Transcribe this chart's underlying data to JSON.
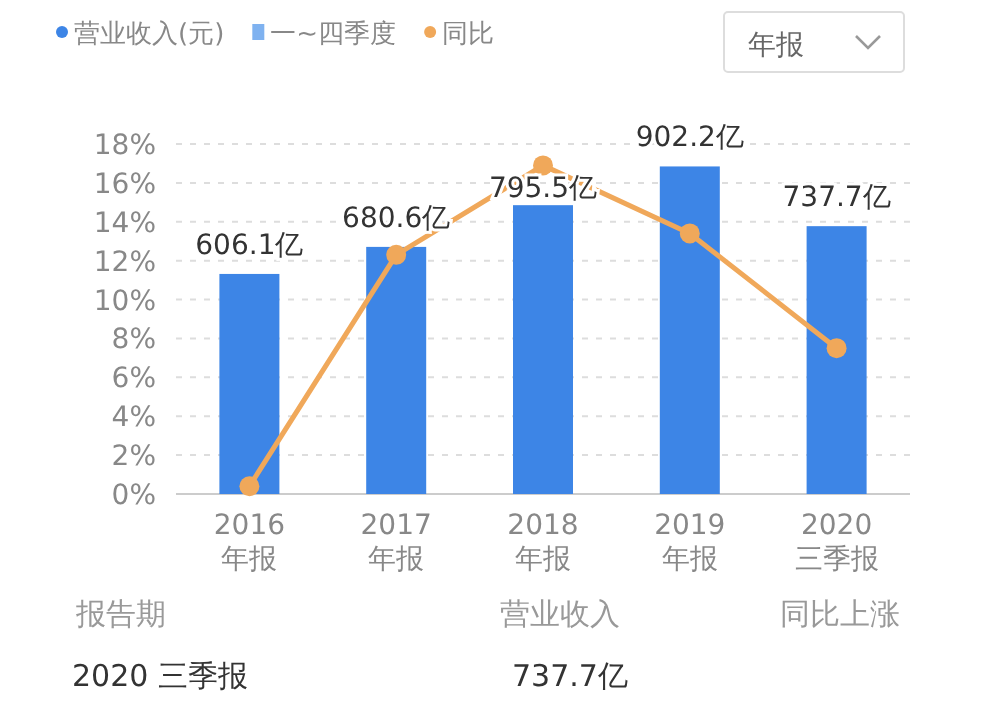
{
  "chart_data": {
    "type": "bar",
    "categories": [
      "2016\n年报",
      "2017\n年报",
      "2018\n年报",
      "2019\n年报",
      "2020\n三季报"
    ],
    "series": [
      {
        "name": "营业收入(元)",
        "color": "#3d85e6",
        "axis": "y2",
        "values": [
          606.1,
          680.6,
          795.5,
          902.2,
          737.7
        ],
        "value_labels": [
          "606.1亿",
          "680.6亿",
          "795.5亿",
          "902.2亿",
          "737.7亿"
        ]
      },
      {
        "name": "同比",
        "type": "line",
        "color": "#f0a85a",
        "marker": "circle",
        "values": [
          0.4,
          12.3,
          16.9,
          13.4,
          7.5
        ]
      }
    ],
    "ylim": [
      0,
      18
    ],
    "yticks": [
      {
        "value": 0,
        "label": "0%"
      },
      {
        "value": 2,
        "label": "2%"
      },
      {
        "value": 4,
        "label": "4%"
      },
      {
        "value": 6,
        "label": "6%"
      },
      {
        "value": 8,
        "label": "8%"
      },
      {
        "value": 10,
        "label": "10%"
      },
      {
        "value": 12,
        "label": "12%"
      },
      {
        "value": 14,
        "label": "14%"
      },
      {
        "value": 16,
        "label": "16%"
      },
      {
        "value": 18,
        "label": "18%"
      }
    ],
    "y2lim": [
      0,
      964
    ],
    "tick_labels": "xy",
    "grid": "y",
    "legend": "top left",
    "annotations": [
      "一~四季度",
      "年报",
      "报告期",
      "营业收入",
      "同比上涨",
      "2020 三季报",
      "737.7亿"
    ]
  }
}
